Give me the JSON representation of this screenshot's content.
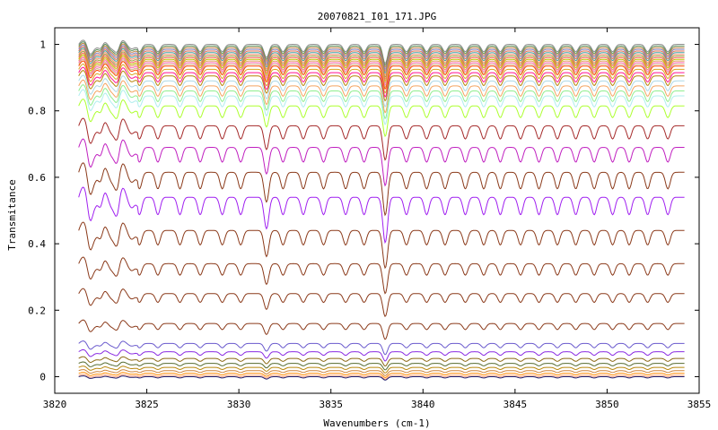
{
  "chart_data": {
    "type": "line",
    "title": "20070821_I01_171.JPG",
    "xlabel": "Wavenumbers (cm-1)",
    "ylabel": "Transmitance",
    "xlim": [
      3820,
      3855
    ],
    "ylim": [
      -0.05,
      1.05
    ],
    "x_ticks": [
      3820,
      3825,
      3830,
      3835,
      3840,
      3845,
      3850,
      3855
    ],
    "x_tick_labels": [
      "3820",
      "3825",
      "3830",
      "3835",
      "3840",
      "3845",
      "3850",
      "3855"
    ],
    "y_ticks": [
      0,
      0.2,
      0.4,
      0.6,
      0.8,
      1
    ],
    "y_tick_labels": [
      "0",
      "0.2",
      "0.4",
      "0.6",
      "0.8",
      "1"
    ],
    "grid": false,
    "legend": "none",
    "x_range_data": [
      3821.3,
      3854.2
    ],
    "absorption_lines": [
      3821.9,
      3822.5,
      3823.4,
      3824.6,
      3825.6,
      3826.8,
      3827.9,
      3829.1,
      3830.1,
      3831.5,
      3832.4,
      3833.5,
      3834.6,
      3835.8,
      3836.8,
      3837.95,
      3839.1,
      3840.2,
      3841.2,
      3842.3,
      3843.3,
      3844.2,
      3845.3,
      3846.3,
      3847.3,
      3848.3,
      3849.3,
      3850.3,
      3851.2,
      3852.2,
      3853.3
    ],
    "series": [
      {
        "baseline": 1.0,
        "color": "#8b8b8b"
      },
      {
        "baseline": 0.995,
        "color": "#5a8f5a"
      },
      {
        "baseline": 0.99,
        "color": "#c08040"
      },
      {
        "baseline": 0.985,
        "color": "#8080c0"
      },
      {
        "baseline": 0.98,
        "color": "#e07050"
      },
      {
        "baseline": 0.975,
        "color": "#40a0a0"
      },
      {
        "baseline": 0.97,
        "color": "#ff8c69"
      },
      {
        "baseline": 0.965,
        "color": "#a0a040"
      },
      {
        "baseline": 0.96,
        "color": "#ff6060"
      },
      {
        "baseline": 0.955,
        "color": "#c0c000"
      },
      {
        "baseline": 0.95,
        "color": "#e0a060"
      },
      {
        "baseline": 0.945,
        "color": "#ff69b4"
      },
      {
        "baseline": 0.94,
        "color": "#d2b48c"
      },
      {
        "baseline": 0.935,
        "color": "#ff4500"
      },
      {
        "baseline": 0.925,
        "color": "#daa520"
      },
      {
        "baseline": 0.915,
        "color": "#ff1493"
      },
      {
        "baseline": 0.905,
        "color": "#b8860b"
      },
      {
        "baseline": 0.89,
        "color": "#add8e6"
      },
      {
        "baseline": 0.875,
        "color": "#f4a460"
      },
      {
        "baseline": 0.86,
        "color": "#90ee90"
      },
      {
        "baseline": 0.845,
        "color": "#afeeee"
      },
      {
        "baseline": 0.815,
        "color": "#adff2f"
      },
      {
        "baseline": 0.755,
        "color": "#a52a2a"
      },
      {
        "baseline": 0.69,
        "color": "#c020c0"
      },
      {
        "baseline": 0.615,
        "color": "#8b3a1a"
      },
      {
        "baseline": 0.54,
        "color": "#a020f0"
      },
      {
        "baseline": 0.44,
        "color": "#8b3a1a"
      },
      {
        "baseline": 0.34,
        "color": "#8b3a1a"
      },
      {
        "baseline": 0.25,
        "color": "#8b3a1a"
      },
      {
        "baseline": 0.16,
        "color": "#8b3a1a"
      },
      {
        "baseline": 0.1,
        "color": "#6a5acd"
      },
      {
        "baseline": 0.075,
        "color": "#8a2be2"
      },
      {
        "baseline": 0.055,
        "color": "#8b6914"
      },
      {
        "baseline": 0.04,
        "color": "#556b2f"
      },
      {
        "baseline": 0.028,
        "color": "#b8860b"
      },
      {
        "baseline": 0.018,
        "color": "#cd853f"
      },
      {
        "baseline": 0.01,
        "color": "#ff8c00"
      },
      {
        "baseline": 0.004,
        "color": "#ffa07a"
      },
      {
        "baseline": 0.0,
        "color": "#1a1a6a"
      }
    ]
  }
}
